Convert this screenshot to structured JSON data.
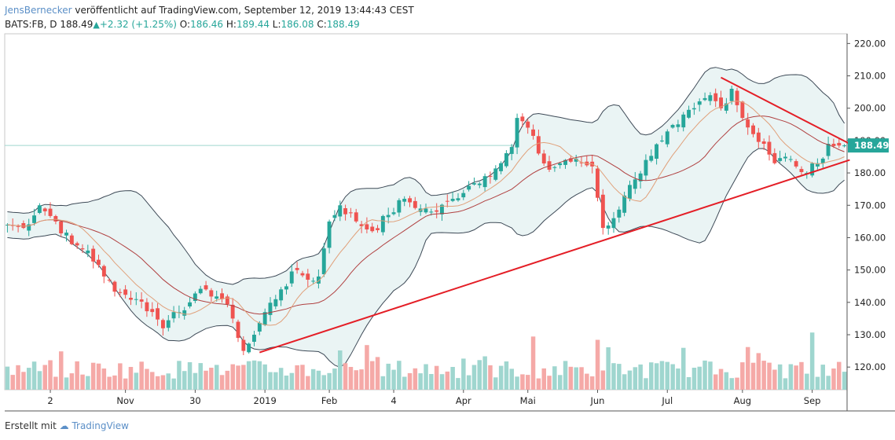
{
  "header": {
    "author": "JensBernecker",
    "published_text": "veröffentlicht auf TradingView.com, September 12, 2019 13:44:43 CEST",
    "symbol": "BATS:FB, D",
    "last": "188.49",
    "change": "+2.32 (+1.25%)",
    "o_label": "O:",
    "o_value": "186.46",
    "h_label": "H:",
    "h_value": "189.44",
    "l_label": "L:",
    "l_value": "186.08",
    "c_label": "C:",
    "c_value": "188.49"
  },
  "footer": {
    "created_with": "Erstellt mit",
    "brand": "TradingView"
  },
  "colors": {
    "up": "#26a69a",
    "down": "#ef5350",
    "up_volume": "#9fd6cf",
    "down_volume": "#f5a9a7",
    "band_fill": "#eaf4f4",
    "band_line": "#3e4a57",
    "ma_fast": "#e0a07a",
    "ma_slow": "#b04040",
    "trendline": "#e41e26",
    "price_tag": "#26a69a"
  },
  "chart_data": {
    "type": "candlestick",
    "x_axis": {
      "tick_labels": [
        "2",
        "Nov",
        "30",
        "2019",
        "Feb",
        "4",
        "Apr",
        "Mai",
        "Jun",
        "Jul",
        "Aug",
        "Sep"
      ],
      "tick_index": [
        8,
        22,
        35,
        48,
        60,
        72,
        85,
        97,
        110,
        123,
        137,
        150
      ]
    },
    "y_axis": {
      "ylim": [
        113,
        223
      ],
      "ticks": [
        120,
        130,
        140,
        150,
        160,
        170,
        180,
        190,
        200,
        210,
        220
      ],
      "tick_labels": [
        "120.00",
        "130.00",
        "140.00",
        "150.00",
        "160.00",
        "170.00",
        "180.00",
        "190.00",
        "200.00",
        "210.00",
        "220.00"
      ]
    },
    "last_price": 188.49,
    "last_price_label": "188.49",
    "close_anchors": [
      [
        0,
        164
      ],
      [
        3,
        163
      ],
      [
        6,
        170
      ],
      [
        9,
        165
      ],
      [
        12,
        158
      ],
      [
        15,
        156
      ],
      [
        18,
        148
      ],
      [
        21,
        143
      ],
      [
        24,
        141
      ],
      [
        27,
        137
      ],
      [
        29,
        132
      ],
      [
        31,
        137
      ],
      [
        34,
        140
      ],
      [
        37,
        144
      ],
      [
        40,
        141
      ],
      [
        42,
        135
      ],
      [
        44,
        125
      ],
      [
        46,
        130
      ],
      [
        48,
        137
      ],
      [
        51,
        144
      ],
      [
        54,
        150
      ],
      [
        56,
        147
      ],
      [
        58,
        148
      ],
      [
        60,
        165
      ],
      [
        62,
        170
      ],
      [
        65,
        165
      ],
      [
        68,
        162
      ],
      [
        71,
        167
      ],
      [
        74,
        172
      ],
      [
        77,
        169
      ],
      [
        80,
        168
      ],
      [
        83,
        172
      ],
      [
        86,
        176
      ],
      [
        89,
        179
      ],
      [
        92,
        183
      ],
      [
        94,
        188
      ],
      [
        95,
        197
      ],
      [
        97,
        194
      ],
      [
        99,
        186
      ],
      [
        101,
        181
      ],
      [
        104,
        184
      ],
      [
        107,
        183
      ],
      [
        109,
        182
      ],
      [
        111,
        163
      ],
      [
        113,
        166
      ],
      [
        115,
        173
      ],
      [
        117,
        178
      ],
      [
        119,
        184
      ],
      [
        122,
        190
      ],
      [
        125,
        195
      ],
      [
        128,
        200
      ],
      [
        131,
        204
      ],
      [
        133,
        200
      ],
      [
        135,
        206
      ],
      [
        137,
        197
      ],
      [
        139,
        192
      ],
      [
        141,
        189
      ],
      [
        143,
        183
      ],
      [
        145,
        185
      ],
      [
        147,
        182
      ],
      [
        149,
        180
      ],
      [
        151,
        183
      ],
      [
        153,
        189
      ],
      [
        155,
        188.49
      ]
    ],
    "ma_fast_period": 9,
    "ma_slow_period": 20,
    "bollinger_period": 20,
    "trendlines": [
      {
        "name": "support",
        "points": [
          [
            47,
            124.5
          ],
          [
            157,
            184
          ]
        ]
      },
      {
        "name": "resistance",
        "points": [
          [
            133,
            209.5
          ],
          [
            157,
            189
          ]
        ]
      }
    ],
    "volume_scale_max": 40
  }
}
